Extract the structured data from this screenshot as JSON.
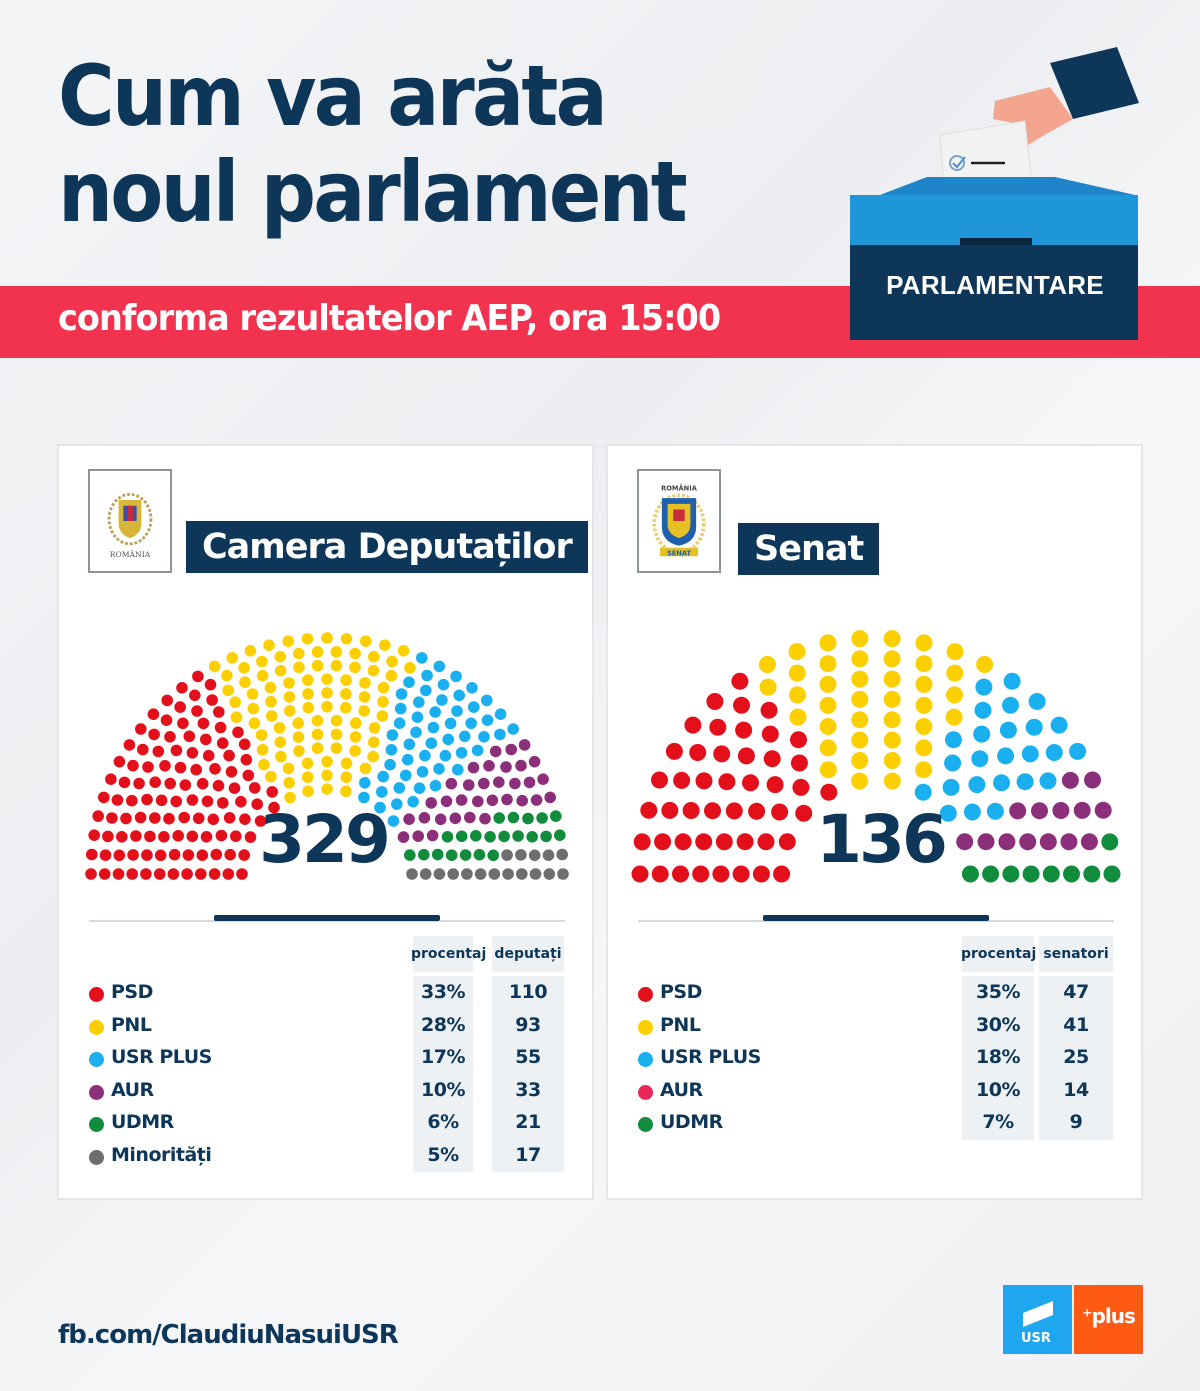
{
  "header": {
    "title_line1": "Cum va arăta",
    "title_line2": "noul parlament",
    "subtitle": "conforma rezultatelor AEP, ora 15:00",
    "badge_label": "PARLAMENTARE"
  },
  "colors": {
    "navy": "#0d3659",
    "accent_red": "#f2334f",
    "PSD": "#e3101b",
    "PNL": "#fcd000",
    "USR PLUS": "#1ab0f0",
    "AUR": "#8c2f7a",
    "AUR_senat_legend": "#e8275b",
    "UDMR": "#118c3c",
    "Minoritati": "#6e6e6e",
    "usr_logo": "#1ea7ef",
    "plus_logo": "#ff5a14"
  },
  "chambers": [
    {
      "name": "Camera Deputaților",
      "emblem_text": "ROMÂNIA",
      "total": "329",
      "col_pct": "procentaj",
      "col_seats": "deputați",
      "rows": [
        {
          "party": "PSD",
          "pct": "33%",
          "seats": "110",
          "color": "#e3101b"
        },
        {
          "party": "PNL",
          "pct": "28%",
          "seats": "93",
          "color": "#fcd000"
        },
        {
          "party": "USR PLUS",
          "pct": "17%",
          "seats": "55",
          "color": "#1ab0f0"
        },
        {
          "party": "AUR",
          "pct": "10%",
          "seats": "33",
          "color": "#8c2f7a"
        },
        {
          "party": "UDMR",
          "pct": "6%",
          "seats": "21",
          "color": "#118c3c"
        },
        {
          "party": "Minorități",
          "pct": "5%",
          "seats": "17",
          "color": "#6e6e6e"
        }
      ]
    },
    {
      "name": "Senat",
      "emblem_text": "ROMÂNIA · SENAT",
      "total": "136",
      "col_pct": "procentaj",
      "col_seats": "senatori",
      "rows": [
        {
          "party": "PSD",
          "pct": "35%",
          "seats": "47",
          "color": "#e3101b"
        },
        {
          "party": "PNL",
          "pct": "30%",
          "seats": "41",
          "color": "#fcd000"
        },
        {
          "party": "USR PLUS",
          "pct": "18%",
          "seats": "25",
          "color": "#1ab0f0"
        },
        {
          "party": "AUR",
          "pct": "10%",
          "seats": "14",
          "color": "#e8275b"
        },
        {
          "party": "UDMR",
          "pct": "7%",
          "seats": "9",
          "color": "#118c3c"
        }
      ]
    }
  ],
  "footer": {
    "link": "fb.com/ClaudiuNasuiUSR",
    "logo_usr": "USR",
    "logo_plus": "⁺plus"
  },
  "chart_data": [
    {
      "type": "hemicycle",
      "title": "Camera Deputaților",
      "total": 329,
      "categories": [
        "PSD",
        "PNL",
        "USR PLUS",
        "AUR",
        "UDMR",
        "Minorități"
      ],
      "values": [
        110,
        93,
        55,
        33,
        21,
        17
      ],
      "percentages": [
        33,
        28,
        17,
        10,
        6,
        5
      ],
      "colors": [
        "#e3101b",
        "#fcd000",
        "#1ab0f0",
        "#8c2f7a",
        "#118c3c",
        "#6e6e6e"
      ],
      "rows": 12
    },
    {
      "type": "hemicycle",
      "title": "Senat",
      "total": 136,
      "categories": [
        "PSD",
        "PNL",
        "USR PLUS",
        "AUR",
        "UDMR"
      ],
      "values": [
        47,
        41,
        25,
        14,
        9
      ],
      "percentages": [
        35,
        30,
        18,
        10,
        7
      ],
      "colors": [
        "#e3101b",
        "#fcd000",
        "#1ab0f0",
        "#8c2f7a",
        "#118c3c"
      ],
      "rows": 8
    }
  ]
}
